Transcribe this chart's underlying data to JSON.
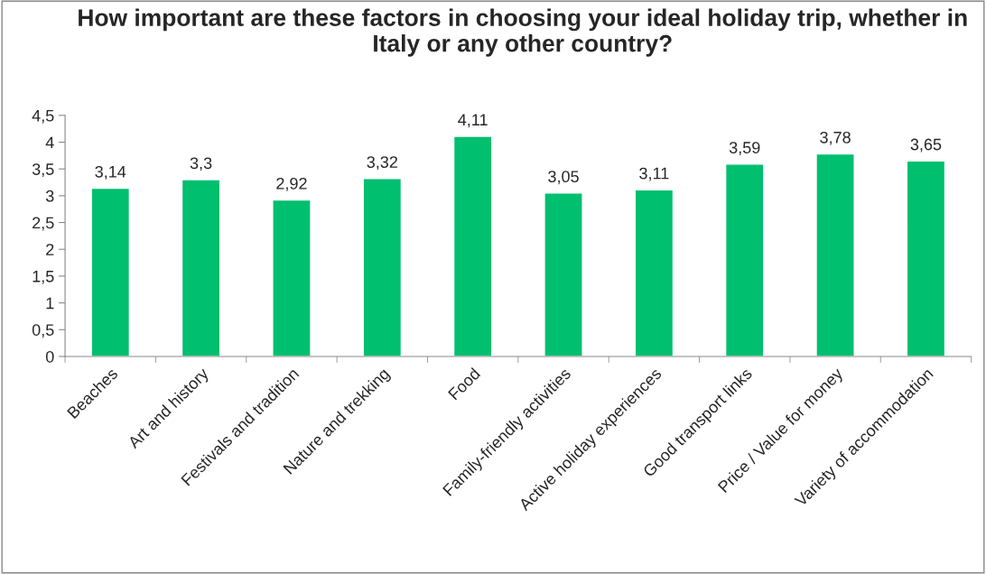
{
  "chart_data": {
    "type": "bar",
    "title": "How important are these factors in choosing your ideal holiday trip, whether in Italy or any other country?",
    "categories": [
      "Beaches",
      "Art and history",
      "Festivals and tradition",
      "Nature and trekking",
      "Food",
      "Family-friendly activities",
      "Active holiday experiences",
      "Good transport links",
      "Price / Value for money",
      "Variety of accommodation"
    ],
    "values": [
      3.14,
      3.3,
      2.92,
      3.32,
      4.11,
      3.05,
      3.11,
      3.59,
      3.78,
      3.65
    ],
    "value_labels": [
      "3,14",
      "3,3",
      "2,92",
      "3,32",
      "4,11",
      "3,05",
      "3,11",
      "3,59",
      "3,78",
      "3,65"
    ],
    "color": "#00bf6f",
    "ylim": [
      0,
      4.5
    ],
    "yticks": [
      0,
      {
        "value": 0.5,
        "label": "0,5"
      },
      1,
      {
        "value": 1.5,
        "label": "1,5"
      },
      2,
      {
        "value": 2.5,
        "label": "2,5"
      },
      3,
      {
        "value": 3.5,
        "label": "3,5"
      },
      4,
      {
        "value": 4.5,
        "label": "4,5"
      }
    ],
    "grid": false,
    "legend": false
  }
}
